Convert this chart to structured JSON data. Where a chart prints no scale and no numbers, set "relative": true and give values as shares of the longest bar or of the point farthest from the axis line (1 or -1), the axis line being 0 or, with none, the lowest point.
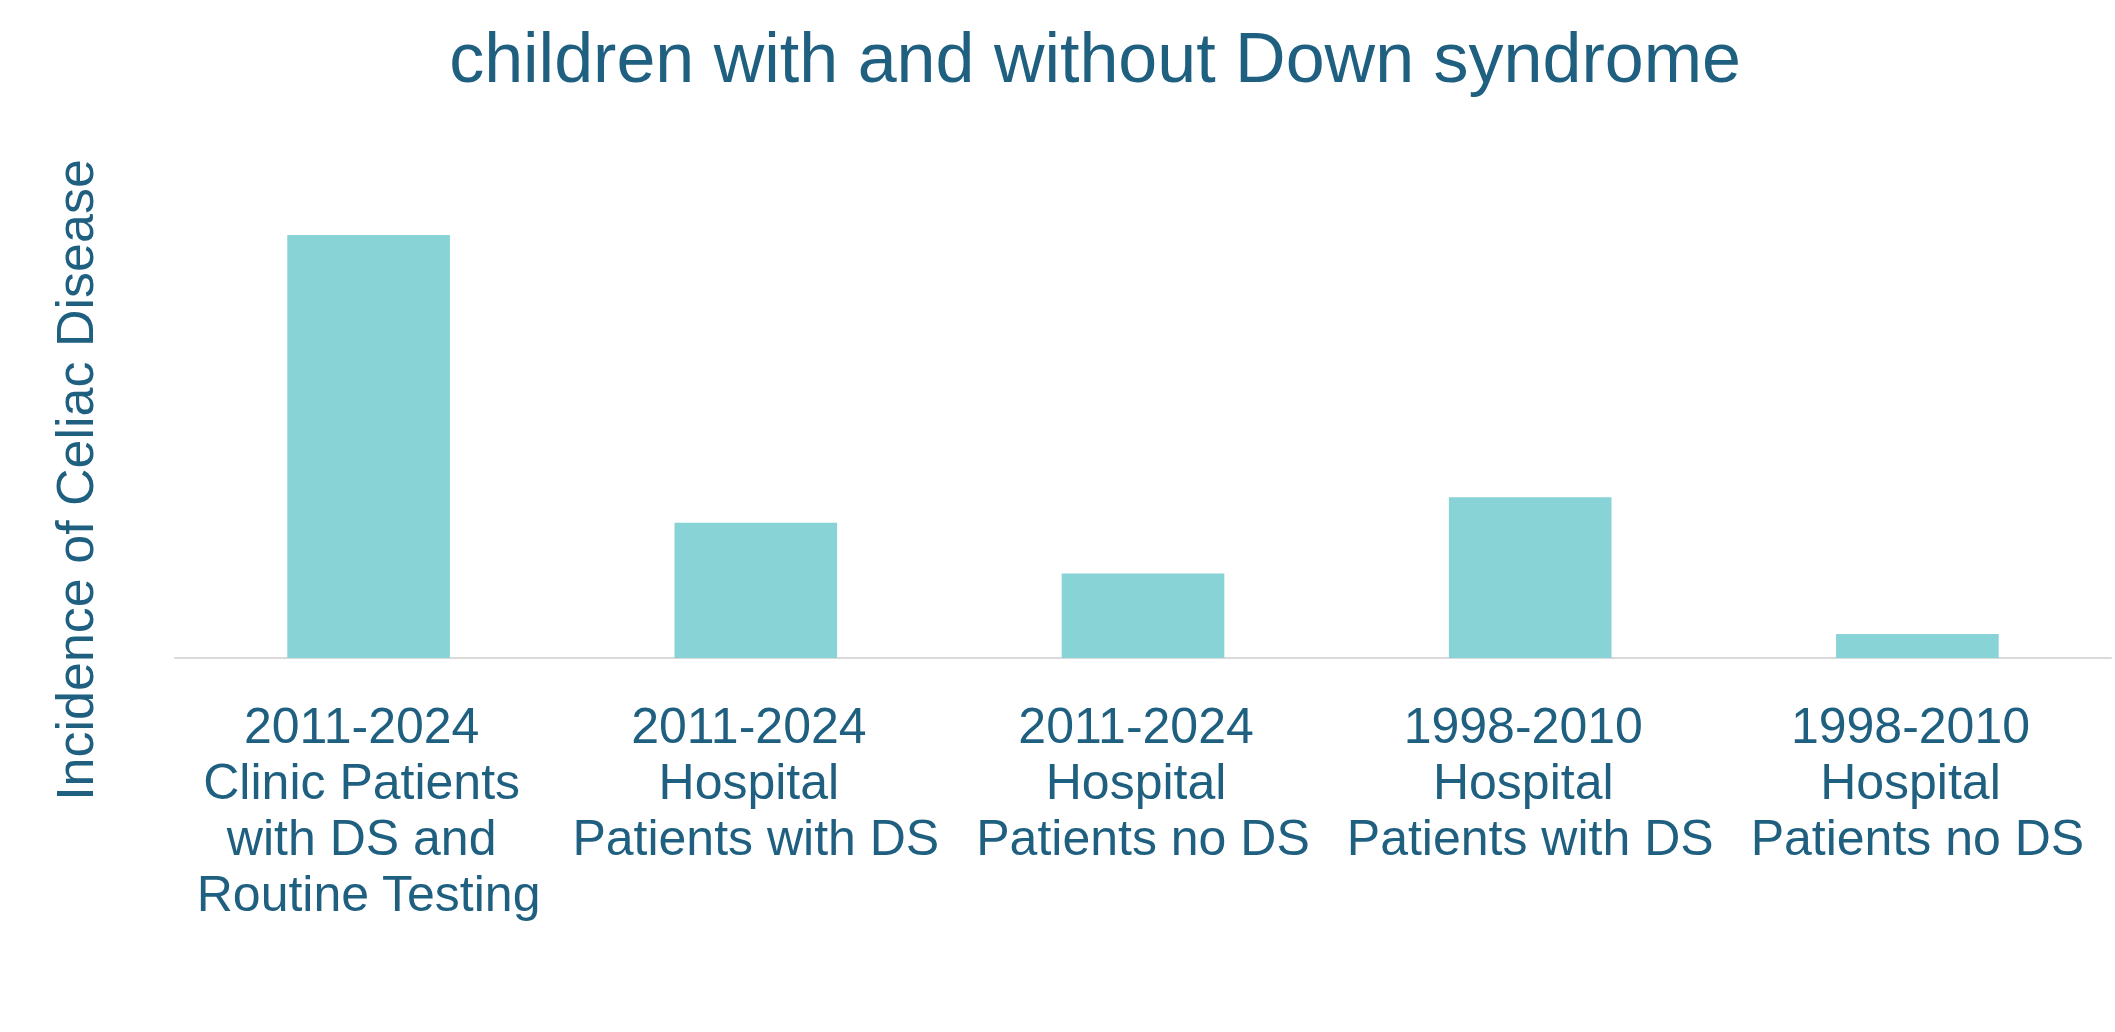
{
  "chart_data": {
    "type": "bar",
    "title": "children with and without Down syndrome",
    "ylabel": "Incidence of Celiac Disease",
    "relative": true,
    "categories": [
      "2011-2024 Clinic Patients with DS and Routine Testing",
      "2011-2024 Hospital Patients with DS",
      "2011-2024 Hospital Patients no DS",
      "1998-2010 Hospital Patients with DS",
      "1998-2010 Hospital Patients no DS"
    ],
    "values": [
      1,
      0.32,
      0.2,
      0.38,
      0.057
    ],
    "color": "#88d3d6",
    "grid": false
  }
}
